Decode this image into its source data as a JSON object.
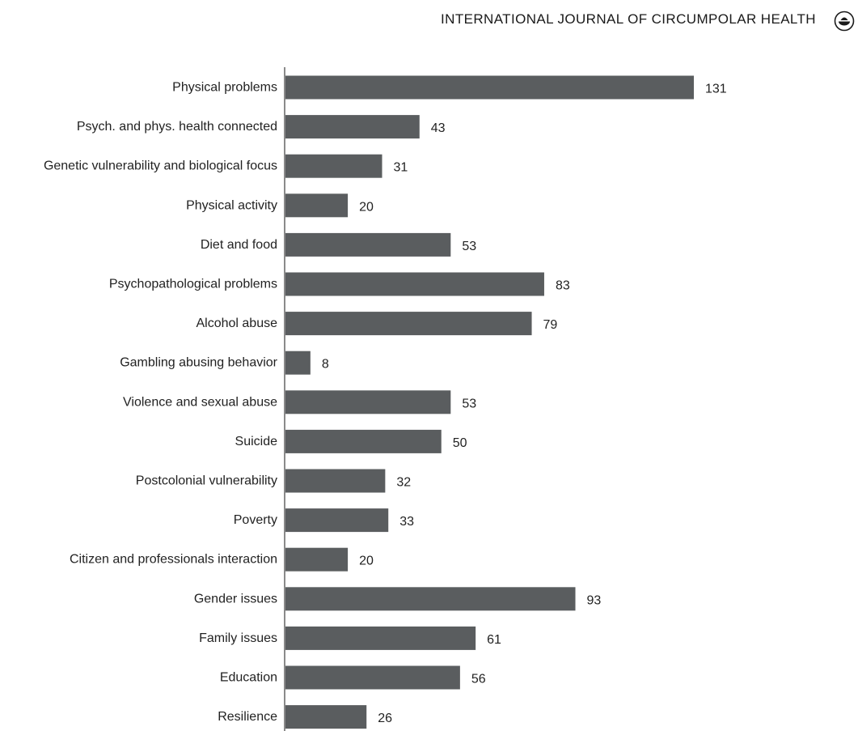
{
  "header": {
    "journal_title": "INTERNATIONAL JOURNAL OF CIRCUMPOLAR HEALTH",
    "logo_icon": "journal-logo-icon"
  },
  "chart_data": {
    "type": "bar",
    "orientation": "horizontal",
    "title": "",
    "xlabel": "",
    "ylabel": "",
    "xlim": [
      0,
      131
    ],
    "grid": false,
    "legend": "none",
    "bar_color": "#5a5d5f",
    "categories": [
      "Physical problems",
      "Psych. and phys. health connected",
      "Genetic vulnerability and biological focus",
      "Physical activity",
      "Diet and food",
      "Psychopathological  problems",
      "Alcohol abuse",
      "Gambling abusing behavior",
      "Violence and sexual abuse",
      "Suicide",
      "Postcolonial vulnerability",
      "Poverty",
      "Citizen and professionals interaction",
      "Gender issues",
      "Family issues",
      "Education",
      "Resilience"
    ],
    "values": [
      131,
      43,
      31,
      20,
      53,
      83,
      79,
      8,
      53,
      50,
      32,
      33,
      20,
      93,
      61,
      56,
      26
    ]
  }
}
